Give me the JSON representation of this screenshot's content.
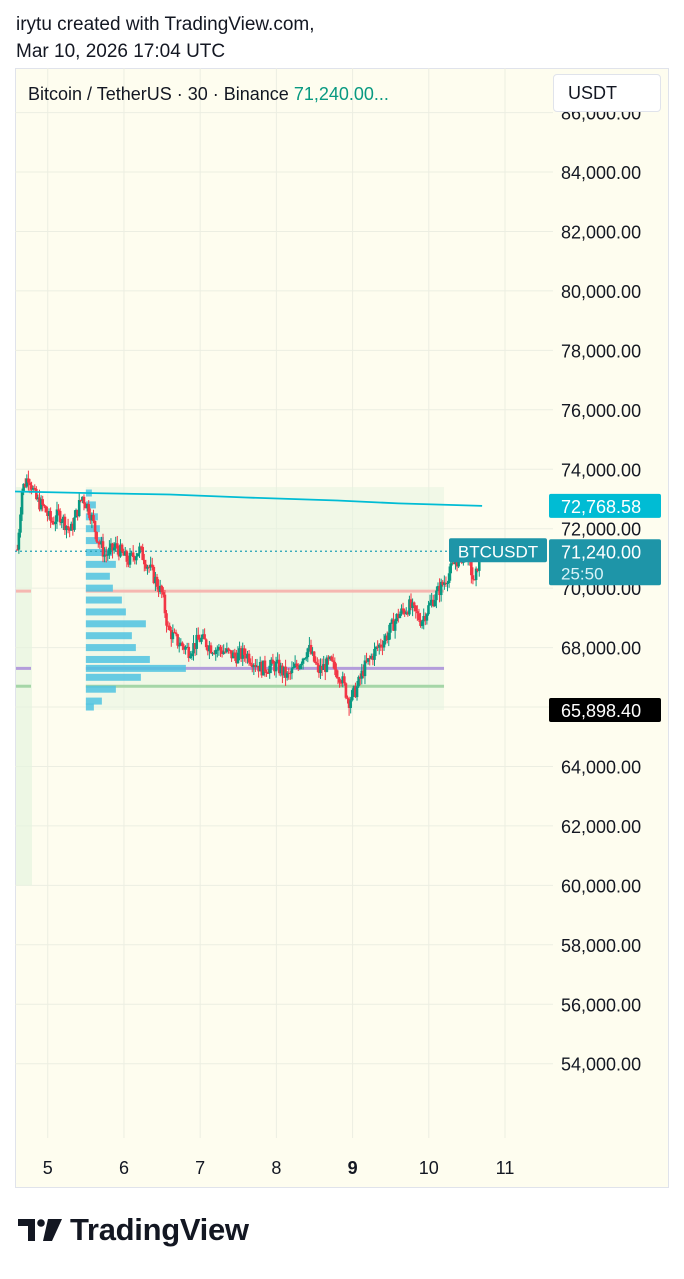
{
  "header": {
    "line1": "irytu created with TradingView.com,",
    "line2": "Mar 10, 2026 17:04 UTC"
  },
  "legend": {
    "symbol": "Bitcoin / TetherUS · 30 · Binance",
    "last_price": "71,240.00..."
  },
  "currency_button": "USDT",
  "footer": {
    "brand": "TradingView"
  },
  "colors": {
    "background": "#fefdef",
    "up": "#089981",
    "down": "#f23645",
    "accent": "#22a0b5",
    "ma_line": "#00bcd4",
    "volume_profile": "#4fc3e0"
  },
  "chart_data": {
    "type": "candlestick",
    "symbol": "BTCUSDT",
    "interval": "30",
    "exchange": "Binance",
    "x_ticks": [
      {
        "label": "5",
        "day": 5
      },
      {
        "label": "6",
        "day": 6
      },
      {
        "label": "7",
        "day": 7
      },
      {
        "label": "8",
        "day": 8
      },
      {
        "label": "9",
        "day": 9,
        "bold": true
      },
      {
        "label": "10",
        "day": 10
      },
      {
        "label": "11",
        "day": 11
      }
    ],
    "xlim": [
      4.57,
      11.63
    ],
    "ylim": [
      51500,
      87500
    ],
    "y_ticks": [
      "86,000.00",
      "84,000.00",
      "82,000.00",
      "80,000.00",
      "78,000.00",
      "76,000.00",
      "74,000.00",
      "72,000.00",
      "70,000.00",
      "68,000.00",
      "66,000.00",
      "64,000.00",
      "62,000.00",
      "60,000.00",
      "58,000.00",
      "56,000.00",
      "54,000.00"
    ],
    "y_tick_values": [
      86000,
      84000,
      82000,
      80000,
      78000,
      76000,
      74000,
      72000,
      70000,
      68000,
      66000,
      64000,
      62000,
      60000,
      58000,
      56000,
      54000
    ],
    "grid": true,
    "price_series": [
      {
        "day": 4.6,
        "price": 71300
      },
      {
        "day": 4.66,
        "price": 73300
      },
      {
        "day": 4.75,
        "price": 73800
      },
      {
        "day": 4.84,
        "price": 73000
      },
      {
        "day": 4.95,
        "price": 72700
      },
      {
        "day": 5.05,
        "price": 72200
      },
      {
        "day": 5.15,
        "price": 72500
      },
      {
        "day": 5.3,
        "price": 71900
      },
      {
        "day": 5.45,
        "price": 73100
      },
      {
        "day": 5.55,
        "price": 72600
      },
      {
        "day": 5.65,
        "price": 71700
      },
      {
        "day": 5.75,
        "price": 71100
      },
      {
        "day": 5.9,
        "price": 71400
      },
      {
        "day": 6.05,
        "price": 70900
      },
      {
        "day": 6.2,
        "price": 71300
      },
      {
        "day": 6.35,
        "price": 70600
      },
      {
        "day": 6.5,
        "price": 69800
      },
      {
        "day": 6.58,
        "price": 68600
      },
      {
        "day": 6.7,
        "price": 68200
      },
      {
        "day": 6.85,
        "price": 67900
      },
      {
        "day": 7.0,
        "price": 68300
      },
      {
        "day": 7.15,
        "price": 68000
      },
      {
        "day": 7.3,
        "price": 67900
      },
      {
        "day": 7.45,
        "price": 67700
      },
      {
        "day": 7.6,
        "price": 67800
      },
      {
        "day": 7.8,
        "price": 67300
      },
      {
        "day": 8.0,
        "price": 67400
      },
      {
        "day": 8.15,
        "price": 67000
      },
      {
        "day": 8.3,
        "price": 67500
      },
      {
        "day": 8.42,
        "price": 68000
      },
      {
        "day": 8.55,
        "price": 67200
      },
      {
        "day": 8.7,
        "price": 67500
      },
      {
        "day": 8.85,
        "price": 67000
      },
      {
        "day": 8.95,
        "price": 66200
      },
      {
        "day": 9.05,
        "price": 66600
      },
      {
        "day": 9.15,
        "price": 67300
      },
      {
        "day": 9.3,
        "price": 67900
      },
      {
        "day": 9.45,
        "price": 68400
      },
      {
        "day": 9.6,
        "price": 69100
      },
      {
        "day": 9.75,
        "price": 69400
      },
      {
        "day": 9.9,
        "price": 68900
      },
      {
        "day": 10.05,
        "price": 69600
      },
      {
        "day": 10.2,
        "price": 70200
      },
      {
        "day": 10.35,
        "price": 70900
      },
      {
        "day": 10.5,
        "price": 71200
      },
      {
        "day": 10.6,
        "price": 70100
      },
      {
        "day": 10.67,
        "price": 71240
      }
    ],
    "moving_average": {
      "values": [
        [
          4.57,
          73250
        ],
        [
          5.5,
          73200
        ],
        [
          6.6,
          73150
        ],
        [
          7.6,
          73050
        ],
        [
          8.8,
          72950
        ],
        [
          9.6,
          72850
        ],
        [
          10.7,
          72768.58
        ]
      ]
    },
    "horizontal_lines": [
      {
        "price": 69900,
        "color": "#f5b7b1"
      },
      {
        "price": 67300,
        "color": "#b39ddb"
      },
      {
        "price": 66700,
        "color": "#a5d6a7"
      }
    ],
    "volume_profile": {
      "range": [
        5.5,
        10.2
      ],
      "price_range": [
        65898.4,
        73400
      ],
      "left_profile_price_range": [
        60000,
        73400
      ],
      "levels": [
        {
          "price": 73200,
          "size": 0.06
        },
        {
          "price": 72800,
          "size": 0.1
        },
        {
          "price": 72400,
          "size": 0.12
        },
        {
          "price": 72000,
          "size": 0.14
        },
        {
          "price": 71600,
          "size": 0.18
        },
        {
          "price": 71200,
          "size": 0.26
        },
        {
          "price": 70800,
          "size": 0.3
        },
        {
          "price": 70400,
          "size": 0.24
        },
        {
          "price": 70000,
          "size": 0.27
        },
        {
          "price": 69600,
          "size": 0.36
        },
        {
          "price": 69200,
          "size": 0.4
        },
        {
          "price": 68800,
          "size": 0.6
        },
        {
          "price": 68400,
          "size": 0.46
        },
        {
          "price": 68000,
          "size": 0.5
        },
        {
          "price": 67600,
          "size": 0.64
        },
        {
          "price": 67300,
          "size": 1.0
        },
        {
          "price": 67000,
          "size": 0.55
        },
        {
          "price": 66600,
          "size": 0.3
        },
        {
          "price": 66200,
          "size": 0.16
        },
        {
          "price": 66000,
          "size": 0.08
        }
      ]
    },
    "labels": {
      "ma_value": "72,768.58",
      "symbol_tag": "BTCUSDT",
      "last_price": "71,240.00",
      "countdown": "25:50",
      "low_price": "65,898.40"
    },
    "label_values": {
      "ma_value": 72768.58,
      "last_price": 71240.0,
      "low_price": 65898.4
    }
  }
}
